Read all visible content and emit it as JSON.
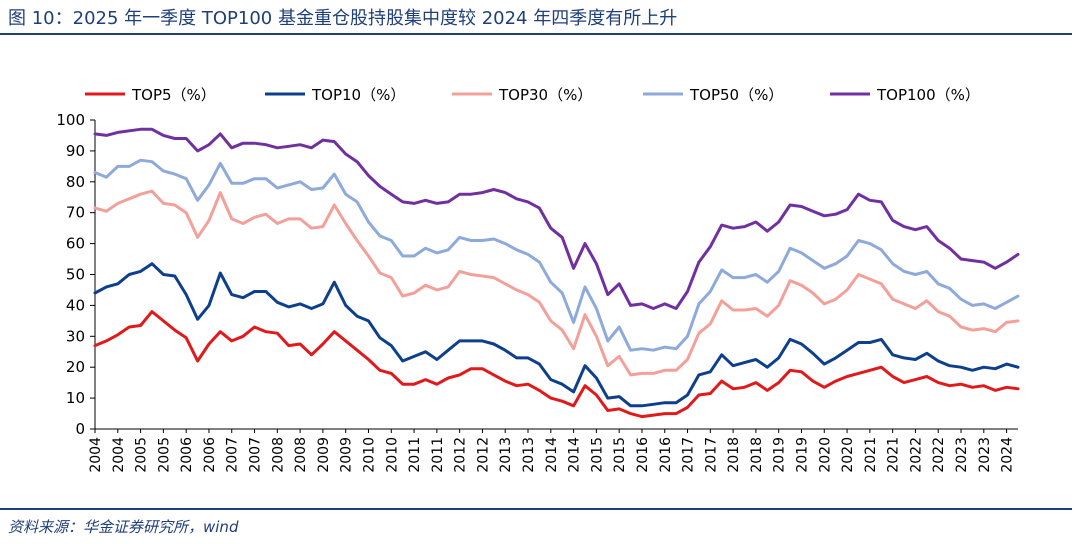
{
  "header": {
    "title": "图 10：2025 年一季度 TOP100 基金重仓股持股集中度较 2024 年四季度有所上升"
  },
  "footer": {
    "source": "资料来源：华金证券研究所，wind"
  },
  "chart_data": {
    "type": "line",
    "title": "",
    "xlabel": "",
    "ylabel": "",
    "ylim": [
      0,
      100
    ],
    "yticks": [
      0,
      10,
      20,
      30,
      40,
      50,
      60,
      70,
      80,
      90,
      100
    ],
    "x_tick_labels": [
      "2004",
      "2004",
      "2005",
      "2005",
      "2006",
      "2006",
      "2007",
      "2007",
      "2008",
      "2008",
      "2009",
      "2009",
      "2010",
      "2010",
      "2011",
      "2011",
      "2012",
      "2012",
      "2013",
      "2013",
      "2014",
      "2014",
      "2015",
      "2015",
      "2016",
      "2016",
      "2017",
      "2017",
      "2018",
      "2018",
      "2019",
      "2019",
      "2020",
      "2020",
      "2021",
      "2021",
      "2022",
      "2022",
      "2023",
      "2023",
      "2024"
    ],
    "legend_position": "top",
    "series": [
      {
        "name": "TOP5（%）",
        "color": "#e2191b",
        "values": [
          27,
          28.5,
          30.5,
          33,
          33.5,
          38,
          35,
          32,
          29.5,
          22,
          27.5,
          31.5,
          28.5,
          30,
          33,
          31.5,
          31,
          27,
          27.5,
          24,
          27.5,
          31.5,
          28.5,
          25.5,
          22.5,
          19,
          18,
          14.5,
          14.5,
          16,
          14.5,
          16.5,
          17.5,
          19.5,
          19.5,
          17.5,
          15.5,
          14,
          14.5,
          12.5,
          10,
          9,
          7.5,
          14,
          11,
          6,
          6.5,
          5,
          4,
          4.5,
          5,
          5,
          7,
          11,
          11.5,
          15.5,
          13,
          13.5,
          15,
          12.5,
          15,
          19,
          18.5,
          15.5,
          13.5,
          15.5,
          17,
          18,
          19,
          20,
          17,
          15,
          16,
          17,
          15,
          14,
          14.5,
          13.5,
          14,
          12.5,
          13.5,
          13
        ]
      },
      {
        "name": "TOP10（%）",
        "color": "#0d3f8c",
        "values": [
          44,
          46,
          47,
          50,
          51,
          53.5,
          50,
          49.5,
          43.5,
          35.5,
          40,
          50.5,
          43.5,
          42.5,
          44.5,
          44.5,
          41,
          39.5,
          40.5,
          39,
          40.5,
          47.5,
          40,
          36.5,
          35,
          29.5,
          27,
          22,
          23.5,
          25,
          22.5,
          25.5,
          28.5,
          28.5,
          28.5,
          27.5,
          25.5,
          23,
          23,
          21,
          16,
          14.5,
          12,
          20.5,
          16.5,
          10,
          10.5,
          7.5,
          7.5,
          8,
          8.5,
          8.5,
          11,
          17.5,
          18.5,
          24,
          20.5,
          21.5,
          22.5,
          20,
          23,
          29,
          27.5,
          24.5,
          21,
          23,
          25.5,
          28,
          28,
          29,
          24,
          23,
          22.5,
          24.5,
          22,
          20.5,
          20,
          19,
          20,
          19.5,
          21,
          20
        ]
      },
      {
        "name": "TOP30（%）",
        "color": "#f4a09a",
        "values": [
          71.5,
          70.5,
          73,
          74.5,
          76,
          77,
          73,
          72.5,
          70,
          62,
          67.5,
          76.5,
          68,
          66.5,
          68.5,
          69.5,
          66.5,
          68,
          68,
          65,
          65.5,
          72.5,
          66.5,
          61,
          56,
          50.5,
          49,
          43,
          44,
          46.5,
          45,
          46,
          51,
          50,
          49.5,
          49,
          47,
          45,
          43.5,
          41,
          35,
          32,
          26,
          37,
          30,
          20.5,
          23.5,
          17.5,
          18,
          18,
          19,
          19,
          22.5,
          31,
          34,
          41.5,
          38.5,
          38.5,
          39,
          36.5,
          40,
          48,
          46.5,
          44,
          40.5,
          42,
          45,
          50,
          48.5,
          47,
          42,
          40.5,
          39,
          41.5,
          38,
          36.5,
          33,
          32,
          32.5,
          31.5,
          34.5,
          35
        ]
      },
      {
        "name": "TOP50（%）",
        "color": "#8eaadb",
        "values": [
          83,
          81.5,
          85,
          85,
          87,
          86.5,
          83.5,
          82.5,
          81,
          74,
          79,
          86,
          79.5,
          79.5,
          81,
          81,
          78,
          79,
          80,
          77.5,
          78,
          82.5,
          76,
          73.5,
          67,
          62.5,
          61,
          56,
          56,
          58.5,
          57,
          58,
          62,
          61,
          61,
          61.5,
          60,
          58,
          56.5,
          54,
          47.5,
          44,
          34.5,
          46,
          39,
          28.5,
          33,
          25.5,
          26,
          25.5,
          26.5,
          26,
          30,
          40.5,
          44.5,
          51.5,
          49,
          49,
          50,
          47.5,
          51,
          58.5,
          57,
          54.5,
          52,
          53.5,
          56,
          61,
          60,
          58,
          53.5,
          51,
          50,
          51,
          47,
          45.5,
          42,
          40,
          40.5,
          39,
          41,
          43
        ]
      },
      {
        "name": "TOP100（%）",
        "color": "#7030a0",
        "values": [
          95.5,
          95,
          96,
          96.5,
          97,
          97,
          95,
          94,
          94,
          90,
          92,
          95.5,
          91,
          92.5,
          92.5,
          92,
          91,
          91.5,
          92,
          91,
          93.5,
          93,
          89,
          86.5,
          82,
          78.5,
          76,
          73.5,
          73,
          74,
          73,
          73.5,
          76,
          76,
          76.5,
          77.5,
          76.5,
          74.5,
          73.5,
          71.5,
          65,
          62,
          52,
          60,
          53.5,
          43.5,
          47,
          40,
          40.5,
          39,
          40.5,
          39,
          44.5,
          54,
          59,
          66,
          65,
          65.5,
          67,
          64,
          67,
          72.5,
          72,
          70.5,
          69,
          69.5,
          71,
          76,
          74,
          73.5,
          67.5,
          65.5,
          64.5,
          65.5,
          61,
          58.5,
          55,
          54.5,
          54,
          52,
          54,
          56.5
        ]
      }
    ]
  }
}
